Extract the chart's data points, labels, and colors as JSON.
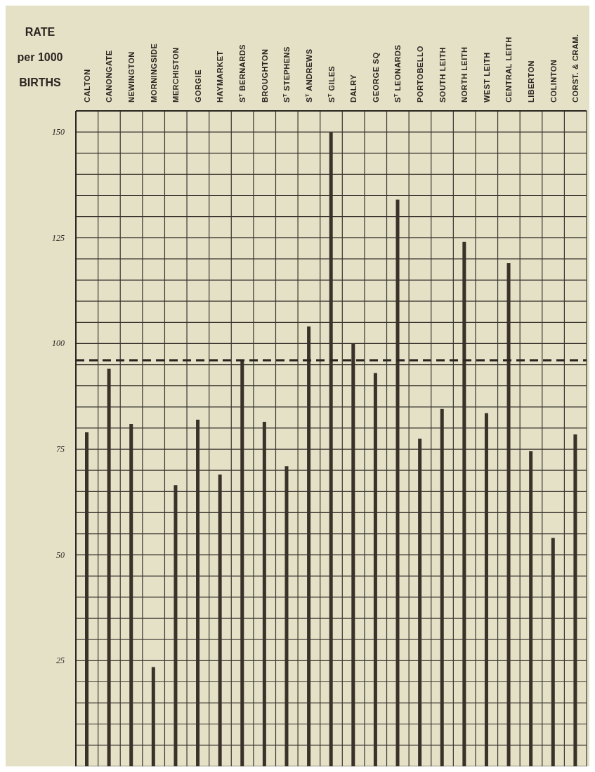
{
  "chart_data": {
    "type": "bar",
    "ylabel": "RATE\nper 1000\nBIRTHS",
    "categories": [
      "CALTON",
      "CANONGATE",
      "NEWINGTON",
      "MORNINGSIDE",
      "MERCHISTON",
      "GORGIE",
      "HAYMARKET",
      "S$^{T}$ BERNARDS",
      "BROUGHTON",
      "S$^{T}$ STEPHENS",
      "S$^{T}$ ANDREWS",
      "S$^{T}$ GILES",
      "DALRY",
      "GEORGE SQ",
      "S$^{T}$ LEONARDS",
      "PORTOBELLO",
      "SOUTH LEITH",
      "NORTH LEITH",
      "WEST LEITH",
      "CENTRAL LEITH",
      "LIBERTON",
      "COLINTON",
      "CORST. & CRAM."
    ],
    "values": [
      79,
      94,
      81,
      23.5,
      66.5,
      82,
      69,
      96,
      81.5,
      71,
      104,
      150,
      100,
      93,
      134,
      77.5,
      84.5,
      124,
      83.5,
      119,
      74.5,
      54,
      78.5
    ],
    "color": "#3a322a",
    "ylim": [
      0,
      155
    ],
    "yticks": [
      {
        "value": 0,
        "label": null
      },
      {
        "value": 5,
        "label": null
      },
      {
        "value": 10,
        "label": null
      },
      {
        "value": 15,
        "label": null
      },
      {
        "value": 20,
        "label": null
      },
      25,
      {
        "value": 30,
        "label": null
      },
      {
        "value": 35,
        "label": null
      },
      {
        "value": 40,
        "label": null
      },
      {
        "value": 45,
        "label": null
      },
      50,
      {
        "value": 55,
        "label": null
      },
      {
        "value": 60,
        "label": null
      },
      {
        "value": 65,
        "label": null
      },
      {
        "value": 70,
        "label": null
      },
      75,
      {
        "value": 80,
        "label": null
      },
      {
        "value": 85,
        "label": null
      },
      {
        "value": 90,
        "label": null
      },
      {
        "value": 95,
        "label": null
      },
      100,
      {
        "value": 105,
        "label": null
      },
      {
        "value": 110,
        "label": null
      },
      {
        "value": 115,
        "label": null
      },
      {
        "value": 120,
        "label": null
      },
      125,
      {
        "value": 130,
        "label": null
      },
      {
        "value": 135,
        "label": null
      },
      {
        "value": 140,
        "label": null
      },
      {
        "value": 145,
        "label": null
      },
      150,
      {
        "value": 155,
        "label": null
      }
    ],
    "grid": true,
    "ref_lines": [
      {
        "axis": "y",
        "value": 96,
        "color": "#2a2420",
        "line_style": "dashed"
      }
    ]
  }
}
